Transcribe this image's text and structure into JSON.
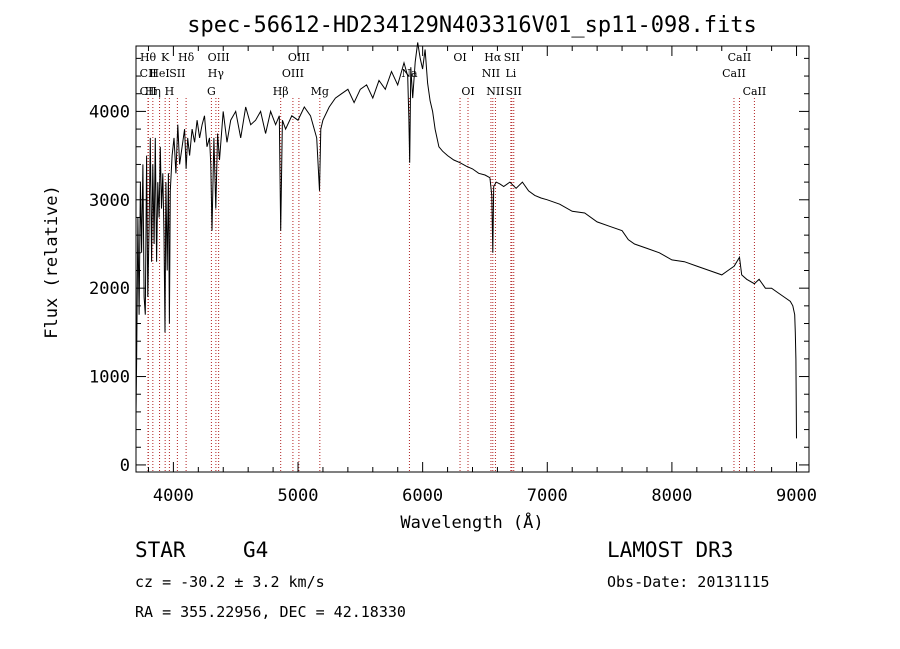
{
  "chart_data": {
    "type": "line",
    "title": "spec-56612-HD234129N403316V01_sp11-098.fits",
    "xlabel": "Wavelength (Å)",
    "ylabel": "Flux (relative)",
    "xlim": [
      3700,
      9100
    ],
    "ylim": [
      -80,
      4740
    ],
    "xticks": [
      4000,
      5000,
      6000,
      7000,
      8000,
      9000
    ],
    "yticks": [
      0,
      1000,
      2000,
      3000,
      4000
    ],
    "series": [
      {
        "name": "spectrum",
        "x": [
          3700,
          3705,
          3715,
          3725,
          3735,
          3745,
          3755,
          3765,
          3775,
          3785,
          3795,
          3805,
          3815,
          3825,
          3835,
          3845,
          3855,
          3865,
          3875,
          3885,
          3895,
          3905,
          3915,
          3925,
          3933,
          3940,
          3950,
          3960,
          3968,
          3975,
          3990,
          4005,
          4020,
          4035,
          4050,
          4070,
          4090,
          4102,
          4115,
          4130,
          4150,
          4170,
          4190,
          4210,
          4230,
          4250,
          4270,
          4290,
          4300,
          4310,
          4325,
          4340,
          4355,
          4370,
          4400,
          4430,
          4460,
          4500,
          4540,
          4580,
          4620,
          4660,
          4700,
          4740,
          4780,
          4820,
          4850,
          4861,
          4875,
          4900,
          4950,
          5000,
          5050,
          5100,
          5150,
          5172,
          5183,
          5200,
          5250,
          5300,
          5350,
          5400,
          5450,
          5500,
          5550,
          5600,
          5650,
          5700,
          5750,
          5800,
          5850,
          5880,
          5890,
          5896,
          5905,
          5920,
          5940,
          5960,
          5980,
          6000,
          6020,
          6040,
          6060,
          6080,
          6100,
          6130,
          6160,
          6200,
          6250,
          6300,
          6350,
          6400,
          6450,
          6500,
          6540,
          6555,
          6563,
          6570,
          6590,
          6620,
          6650,
          6700,
          6750,
          6800,
          6850,
          6900,
          6950,
          7000,
          7100,
          7200,
          7300,
          7400,
          7500,
          7600,
          7650,
          7700,
          7800,
          7900,
          8000,
          8100,
          8200,
          8300,
          8400,
          8450,
          8500,
          8542,
          8560,
          8600,
          8662,
          8700,
          8750,
          8800,
          8850,
          8900,
          8950,
          8970,
          8985,
          8990,
          8995,
          9000
        ],
        "values": [
          550,
          1150,
          2800,
          1700,
          3200,
          2400,
          3400,
          1900,
          1700,
          3500,
          1900,
          2700,
          3700,
          2300,
          3400,
          2500,
          3700,
          2300,
          3200,
          2800,
          3600,
          2900,
          3300,
          2600,
          1500,
          3200,
          2200,
          3300,
          1600,
          3100,
          3500,
          3700,
          3300,
          3850,
          3400,
          3600,
          3800,
          3350,
          3700,
          3500,
          3800,
          3650,
          3900,
          3700,
          3850,
          3950,
          3600,
          3700,
          3400,
          2650,
          3700,
          2900,
          3750,
          3450,
          4000,
          3650,
          3900,
          4000,
          3700,
          4050,
          3850,
          3900,
          4000,
          3750,
          4000,
          3850,
          3950,
          2650,
          3900,
          3800,
          3950,
          3900,
          4050,
          3950,
          3700,
          3100,
          3800,
          3900,
          4050,
          4150,
          4200,
          4250,
          4100,
          4250,
          4300,
          4150,
          4350,
          4250,
          4450,
          4300,
          4550,
          4400,
          3900,
          3420,
          4500,
          4150,
          4560,
          4780,
          4600,
          4480,
          4700,
          4320,
          4120,
          4000,
          3800,
          3600,
          3550,
          3500,
          3450,
          3420,
          3380,
          3350,
          3300,
          3280,
          3250,
          3050,
          2400,
          3150,
          3200,
          3180,
          3150,
          3200,
          3130,
          3200,
          3100,
          3050,
          3020,
          3000,
          2950,
          2870,
          2850,
          2750,
          2700,
          2650,
          2550,
          2500,
          2450,
          2400,
          2320,
          2300,
          2250,
          2200,
          2150,
          2200,
          2250,
          2350,
          2150,
          2100,
          2050,
          2100,
          2000,
          2000,
          1950,
          1900,
          1850,
          1800,
          1700,
          1500,
          1200,
          300
        ]
      }
    ],
    "line_markers": [
      {
        "name": "Hθ",
        "wave": 3797,
        "row": 1
      },
      {
        "name": "CII",
        "wave": 3798,
        "row": 2
      },
      {
        "name": "CII",
        "wave": 3798,
        "row": 3
      },
      {
        "name": "HeI",
        "wave": 3889,
        "row": 2
      },
      {
        "name": "Hη",
        "wave": 3835,
        "row": 3
      },
      {
        "name": "K",
        "wave": 3934,
        "row": 1
      },
      {
        "name": "H",
        "wave": 3968,
        "row": 3
      },
      {
        "name": "SII",
        "wave": 4032,
        "row": 2
      },
      {
        "name": "Hδ",
        "wave": 4102,
        "row": 1
      },
      {
        "name": "OIII",
        "wave": 4363,
        "row": 1
      },
      {
        "name": "Hγ",
        "wave": 4341,
        "row": 2
      },
      {
        "name": "G",
        "wave": 4305,
        "row": 3
      },
      {
        "name": "OIII",
        "wave": 5007,
        "row": 1
      },
      {
        "name": "OIII",
        "wave": 4959,
        "row": 2
      },
      {
        "name": "Hβ",
        "wave": 4861,
        "row": 3
      },
      {
        "name": "Mg",
        "wave": 5175,
        "row": 3
      },
      {
        "name": "Na",
        "wave": 5894,
        "row": 2
      },
      {
        "name": "OI",
        "wave": 6300,
        "row": 1
      },
      {
        "name": "OI",
        "wave": 6364,
        "row": 3
      },
      {
        "name": "Hα",
        "wave": 6563,
        "row": 1
      },
      {
        "name": "SII",
        "wave": 6716,
        "row": 1
      },
      {
        "name": "NII",
        "wave": 6548,
        "row": 2
      },
      {
        "name": "Li",
        "wave": 6708,
        "row": 2
      },
      {
        "name": "NII",
        "wave": 6584,
        "row": 3
      },
      {
        "name": "SII",
        "wave": 6731,
        "row": 3
      },
      {
        "name": "CaII",
        "wave": 8542,
        "row": 1
      },
      {
        "name": "CaII",
        "wave": 8498,
        "row": 2
      },
      {
        "name": "CaII",
        "wave": 8662,
        "row": 3
      }
    ]
  },
  "info": {
    "class": "STAR",
    "subclass": "G4",
    "survey": "LAMOST DR3",
    "redshift": "cz = -30.2 ± 3.2 km/s",
    "obs_date": "Obs-Date: 20131115",
    "coords": "RA = 355.22956, DEC =  42.18330"
  },
  "colors": {
    "line": "#000000",
    "marker": "#b22222"
  }
}
